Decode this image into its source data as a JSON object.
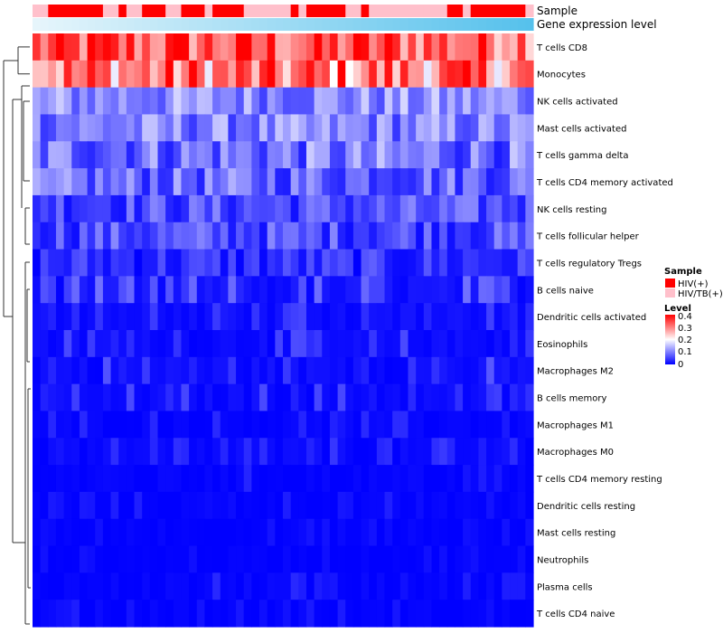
{
  "chart_data": {
    "type": "heatmap",
    "annotation_labels": [
      "Sample",
      "Gene expression level"
    ],
    "rows": [
      "T cells CD8",
      "Monocytes",
      "NK cells activated",
      "Mast cells activated",
      "T cells gamma delta",
      "T cells CD4 memory activated",
      "NK cells resting",
      "T cells follicular helper",
      "T cells regulatory  Tregs",
      "B cells naive",
      "Dendritic cells activated",
      "Eosinophils",
      "Macrophages M2",
      "B cells memory",
      "Macrophages M1",
      "Macrophages M0",
      "T cells CD4 memory resting",
      "Dendritic cells resting",
      "Mast cells resting",
      "Neutrophils",
      "Plasma cells",
      "T cells CD4 naive"
    ],
    "sample_groups": [
      "HIV/TB(+)",
      "HIV/TB(+)",
      "HIV(+)",
      "HIV(+)",
      "HIV(+)",
      "HIV(+)",
      "HIV(+)",
      "HIV(+)",
      "HIV(+)",
      "HIV/TB(+)",
      "HIV/TB(+)",
      "HIV(+)",
      "HIV/TB(+)",
      "HIV/TB(+)",
      "HIV(+)",
      "HIV(+)",
      "HIV(+)",
      "HIV/TB(+)",
      "HIV/TB(+)",
      "HIV(+)",
      "HIV(+)",
      "HIV(+)",
      "HIV/TB(+)",
      "HIV(+)",
      "HIV(+)",
      "HIV(+)",
      "HIV(+)",
      "HIV/TB(+)",
      "HIV/TB(+)",
      "HIV/TB(+)",
      "HIV/TB(+)",
      "HIV/TB(+)",
      "HIV/TB(+)",
      "HIV(+)",
      "HIV/TB(+)",
      "HIV(+)",
      "HIV(+)",
      "HIV(+)",
      "HIV(+)",
      "HIV(+)",
      "HIV/TB(+)",
      "HIV/TB(+)",
      "HIV(+)",
      "HIV/TB(+)",
      "HIV/TB(+)",
      "HIV/TB(+)",
      "HIV/TB(+)",
      "HIV/TB(+)",
      "HIV/TB(+)",
      "HIV/TB(+)",
      "HIV/TB(+)",
      "HIV/TB(+)",
      "HIV/TB(+)",
      "HIV(+)",
      "HIV(+)",
      "HIV/TB(+)",
      "HIV(+)",
      "HIV(+)",
      "HIV(+)",
      "HIV(+)",
      "HIV(+)",
      "HIV(+)",
      "HIV(+)",
      "HIV/TB(+)"
    ],
    "legend": {
      "sample": {
        "title": "Sample",
        "items": [
          {
            "label": "HIV(+)",
            "color": "#ff0000"
          },
          {
            "label": "HIV/TB(+)",
            "color": "#ffc0cb"
          }
        ]
      },
      "level": {
        "title": "Level",
        "ticks": [
          {
            "label": "0.4",
            "value": 0.4
          },
          {
            "label": "0.3",
            "value": 0.3
          },
          {
            "label": "0.2",
            "value": 0.2
          },
          {
            "label": "0.1",
            "value": 0.1
          },
          {
            "label": "0",
            "value": 0
          }
        ]
      }
    },
    "color_scale": {
      "low": "#0000ff",
      "mid": "#ffffff",
      "high": "#ff0000",
      "min": 0,
      "max": 0.4
    },
    "expression_gradient": {
      "from": "#e6f5fb",
      "to": "#56c1ec"
    },
    "row_means": [
      0.33,
      0.3,
      0.11,
      0.1,
      0.09,
      0.08,
      0.06,
      0.06,
      0.035,
      0.05,
      0.04,
      0.03,
      0.035,
      0.03,
      0.015,
      0.02,
      0.01,
      0.01,
      0.006,
      0.005,
      0.012,
      0.008
    ],
    "row_spreads": [
      0.1,
      0.12,
      0.06,
      0.06,
      0.07,
      0.06,
      0.05,
      0.05,
      0.04,
      0.04,
      0.03,
      0.03,
      0.035,
      0.03,
      0.02,
      0.025,
      0.02,
      0.015,
      0.01,
      0.01,
      0.02,
      0.015
    ],
    "n_columns": 64
  }
}
